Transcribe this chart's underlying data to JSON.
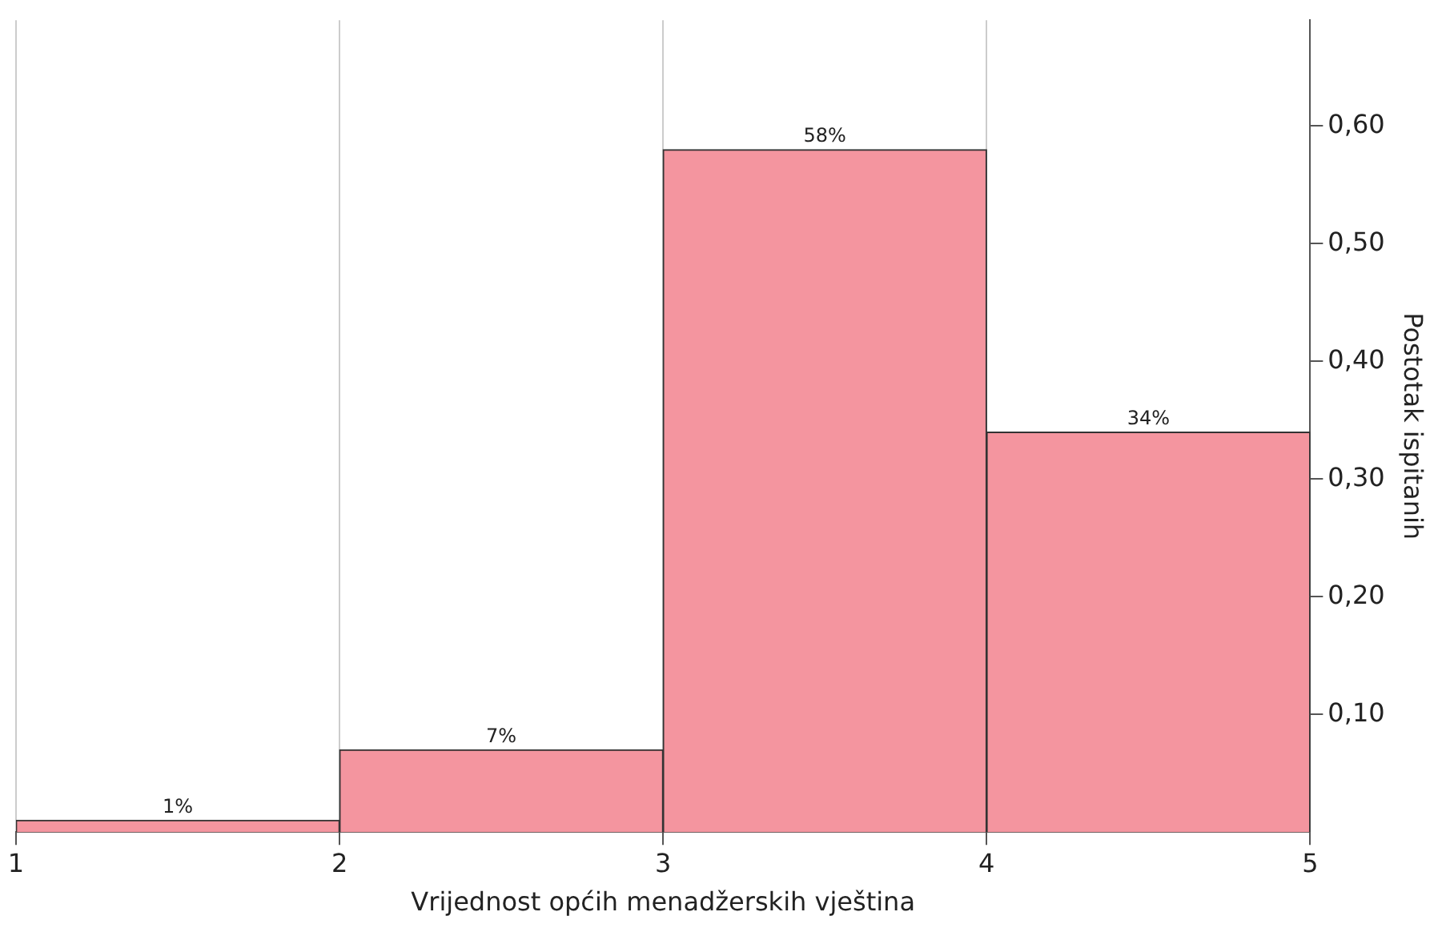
{
  "chart_data": {
    "type": "histogram",
    "xlabel": "Vrijednost općih menadžerskih vještina",
    "ylabel": "Postotak ispitanih",
    "bins": [
      1,
      2,
      3,
      4,
      5
    ],
    "values": [
      0.01,
      0.07,
      0.58,
      0.34
    ],
    "value_labels": [
      "1%",
      "7%",
      "58%",
      "34%"
    ],
    "color": "#f4959f",
    "xlim": [
      1,
      5
    ],
    "xticks": [
      1,
      2,
      3,
      4,
      5
    ],
    "ylim": [
      0,
      0.69
    ],
    "yticks": [
      {
        "value": 0.1,
        "label": "0,10"
      },
      {
        "value": 0.2,
        "label": "0,20"
      },
      {
        "value": 0.3,
        "label": "0,30"
      },
      {
        "value": 0.4,
        "label": "0,40"
      },
      {
        "value": 0.5,
        "label": "0,50"
      },
      {
        "value": 0.6,
        "label": "0,60"
      }
    ],
    "grid": "x",
    "legend": false
  }
}
